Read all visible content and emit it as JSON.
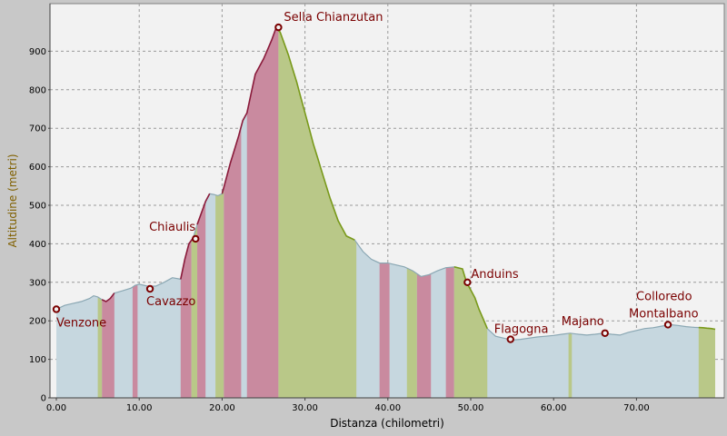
{
  "chart_data": {
    "type": "area",
    "xlabel": "Distanza (chilometri)",
    "ylabel": "Altitudine (metri)",
    "xlim": [
      0,
      80
    ],
    "ylim": [
      0,
      1000
    ],
    "xticks": [
      "0.00",
      "10.00",
      "20.00",
      "30.00",
      "40.00",
      "50.00",
      "60.00",
      "70.00"
    ],
    "yticks": [
      "0",
      "100",
      "200",
      "300",
      "400",
      "500",
      "600",
      "700",
      "800",
      "900"
    ],
    "grid": true,
    "colors": {
      "background": "#c8c8c8",
      "plot": "#f2f2f2",
      "flat": "#c6d7df",
      "climb": "#c98a9f",
      "descent": "#b9c888",
      "climb_line": "#8b1a3a",
      "descent_line": "#7a9a1a",
      "flat_line": "#8aa7b3",
      "label": "#7a0000",
      "axis_title": "#806000"
    },
    "profile": {
      "x": [
        0,
        1,
        2,
        3,
        4,
        4.5,
        5,
        5.5,
        6,
        6.5,
        7,
        8,
        9,
        9.5,
        10,
        11,
        12,
        13,
        14,
        15,
        15.5,
        16,
        16.5,
        17,
        17.5,
        18,
        18.5,
        19,
        19.5,
        20,
        21,
        22,
        22.5,
        23,
        24,
        25,
        26,
        26.5,
        27,
        28,
        29,
        30,
        31,
        32,
        33,
        34,
        35,
        36,
        37,
        38,
        39,
        40,
        41,
        42,
        43,
        44,
        45,
        46,
        47,
        48,
        49,
        49.5,
        50,
        50.5,
        51,
        52,
        53,
        54,
        55,
        56,
        57,
        58,
        59,
        60,
        61,
        62,
        63,
        64,
        65,
        66,
        67,
        68,
        69,
        70,
        71,
        72,
        73,
        74,
        75,
        76,
        77,
        78,
        79,
        79.5
      ],
      "y": [
        230,
        240,
        245,
        250,
        258,
        265,
        262,
        255,
        250,
        258,
        272,
        278,
        285,
        292,
        295,
        290,
        290,
        300,
        312,
        308,
        360,
        400,
        415,
        450,
        480,
        510,
        530,
        528,
        525,
        530,
        610,
        680,
        720,
        740,
        840,
        880,
        930,
        960,
        950,
        890,
        820,
        740,
        660,
        590,
        520,
        460,
        420,
        410,
        380,
        360,
        350,
        350,
        345,
        340,
        330,
        315,
        320,
        330,
        338,
        340,
        335,
        300,
        280,
        260,
        230,
        180,
        160,
        155,
        150,
        152,
        155,
        158,
        160,
        162,
        165,
        168,
        165,
        163,
        165,
        168,
        165,
        163,
        170,
        175,
        180,
        182,
        186,
        190,
        188,
        185,
        183,
        182,
        180,
        178
      ]
    },
    "bands": {
      "climb": [
        [
          5.5,
          7
        ],
        [
          9.2,
          9.8
        ],
        [
          15,
          16.3
        ],
        [
          17,
          18
        ],
        [
          20.2,
          22.3
        ],
        [
          23,
          26.8
        ],
        [
          39,
          40.2
        ],
        [
          43.5,
          45.2
        ],
        [
          47,
          48
        ]
      ],
      "descent": [
        [
          5,
          5.5
        ],
        [
          16.3,
          17
        ],
        [
          19.2,
          20.2
        ],
        [
          26.8,
          36.2
        ],
        [
          42.3,
          43.5
        ],
        [
          48,
          52
        ],
        [
          61.8,
          62.2
        ],
        [
          77.5,
          79.5
        ]
      ],
      "climb_lines": [
        [
          5.5,
          7
        ],
        [
          15,
          16.5
        ],
        [
          17,
          18.5
        ],
        [
          20,
          26.5
        ]
      ],
      "descent_lines": [
        [
          26.5,
          36
        ],
        [
          48,
          52
        ],
        [
          77.5,
          79.5
        ]
      ]
    },
    "waypoints": [
      {
        "name": "Venzone",
        "x": 0,
        "y": 230
      },
      {
        "name": "Cavazzo",
        "x": 11.3,
        "y": 283
      },
      {
        "name": "Chiaulis",
        "x": 16.8,
        "y": 413
      },
      {
        "name": "Sella Chianzutan",
        "x": 26.8,
        "y": 962
      },
      {
        "name": "Anduins",
        "x": 49.6,
        "y": 300
      },
      {
        "name": "Flagogna",
        "x": 54.8,
        "y": 152
      },
      {
        "name": "Majano",
        "x": 66.2,
        "y": 168
      },
      {
        "name": "Colloredo",
        "x": 73.8,
        "y": 190
      },
      {
        "name": "Montalbano",
        "x": 73.8,
        "y": 190
      }
    ]
  }
}
